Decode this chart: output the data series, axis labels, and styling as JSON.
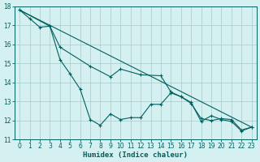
{
  "xlabel": "Humidex (Indice chaleur)",
  "bg_color": "#d4f0f0",
  "grid_color": "#a8c8c8",
  "line_color": "#006060",
  "xlim": [
    -0.5,
    23.5
  ],
  "ylim": [
    11,
    18
  ],
  "xticks": [
    0,
    1,
    2,
    3,
    4,
    5,
    6,
    7,
    8,
    9,
    10,
    11,
    12,
    13,
    14,
    15,
    16,
    17,
    18,
    19,
    20,
    21,
    22,
    23
  ],
  "yticks": [
    11,
    12,
    13,
    14,
    15,
    16,
    17,
    18
  ],
  "line1_x": [
    0,
    1,
    2,
    3,
    4,
    5,
    6,
    7,
    8,
    9,
    10,
    11,
    12,
    13,
    14,
    15,
    16,
    17,
    18,
    19,
    20,
    21,
    22,
    23
  ],
  "line1_y": [
    17.8,
    17.35,
    16.9,
    16.95,
    15.2,
    14.45,
    13.65,
    12.05,
    11.75,
    12.35,
    12.05,
    12.15,
    12.15,
    12.85,
    12.85,
    13.45,
    13.25,
    12.95,
    11.95,
    12.25,
    12.05,
    11.95,
    11.45,
    11.65
  ],
  "line2_x": [
    0,
    3,
    4,
    7,
    9,
    10,
    12,
    14,
    15,
    16,
    17,
    18,
    19,
    20,
    21,
    22,
    23
  ],
  "line2_y": [
    17.8,
    16.95,
    15.85,
    14.85,
    14.3,
    14.7,
    14.4,
    14.35,
    13.5,
    13.25,
    12.9,
    12.1,
    12.0,
    12.1,
    12.05,
    11.5,
    11.65
  ],
  "line3_x": [
    0,
    23
  ],
  "line3_y": [
    17.8,
    11.65
  ],
  "marker_size": 2.5,
  "line_width": 0.8,
  "tick_fontsize": 5.5,
  "xlabel_fontsize": 6.5
}
